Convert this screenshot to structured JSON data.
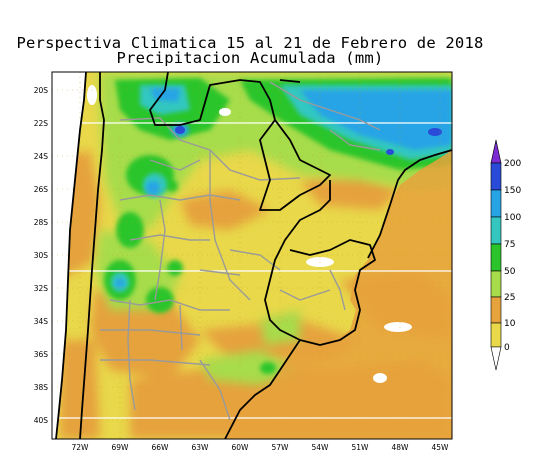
{
  "title": {
    "line1": "Perspectiva Climatica 15 al 21 de Febrero de 2018",
    "line2": "Precipitacion Acumulada (mm)"
  },
  "map": {
    "lat_labels": [
      "20S",
      "22S",
      "24S",
      "26S",
      "28S",
      "30S",
      "32S",
      "34S",
      "36S",
      "38S",
      "40S"
    ],
    "lon_labels": [
      "72W",
      "69W",
      "66W",
      "63W",
      "60W",
      "57W",
      "54W",
      "51W",
      "48W",
      "45W"
    ]
  },
  "legend": {
    "levels": [
      "0",
      "10",
      "25",
      "50",
      "75",
      "100",
      "150",
      "200"
    ],
    "colors": [
      "#e8d84a",
      "#e6a23c",
      "#a7dc4b",
      "#2bc52b",
      "#33c7c0",
      "#26a4e6",
      "#2a4ad8",
      "#7b2bd2"
    ]
  },
  "palette": {
    "ocean": "#ffffff",
    "land_base": "#e8d84a",
    "border": "#000000",
    "province": "#9a9a9a",
    "grid": "#c8a000"
  }
}
